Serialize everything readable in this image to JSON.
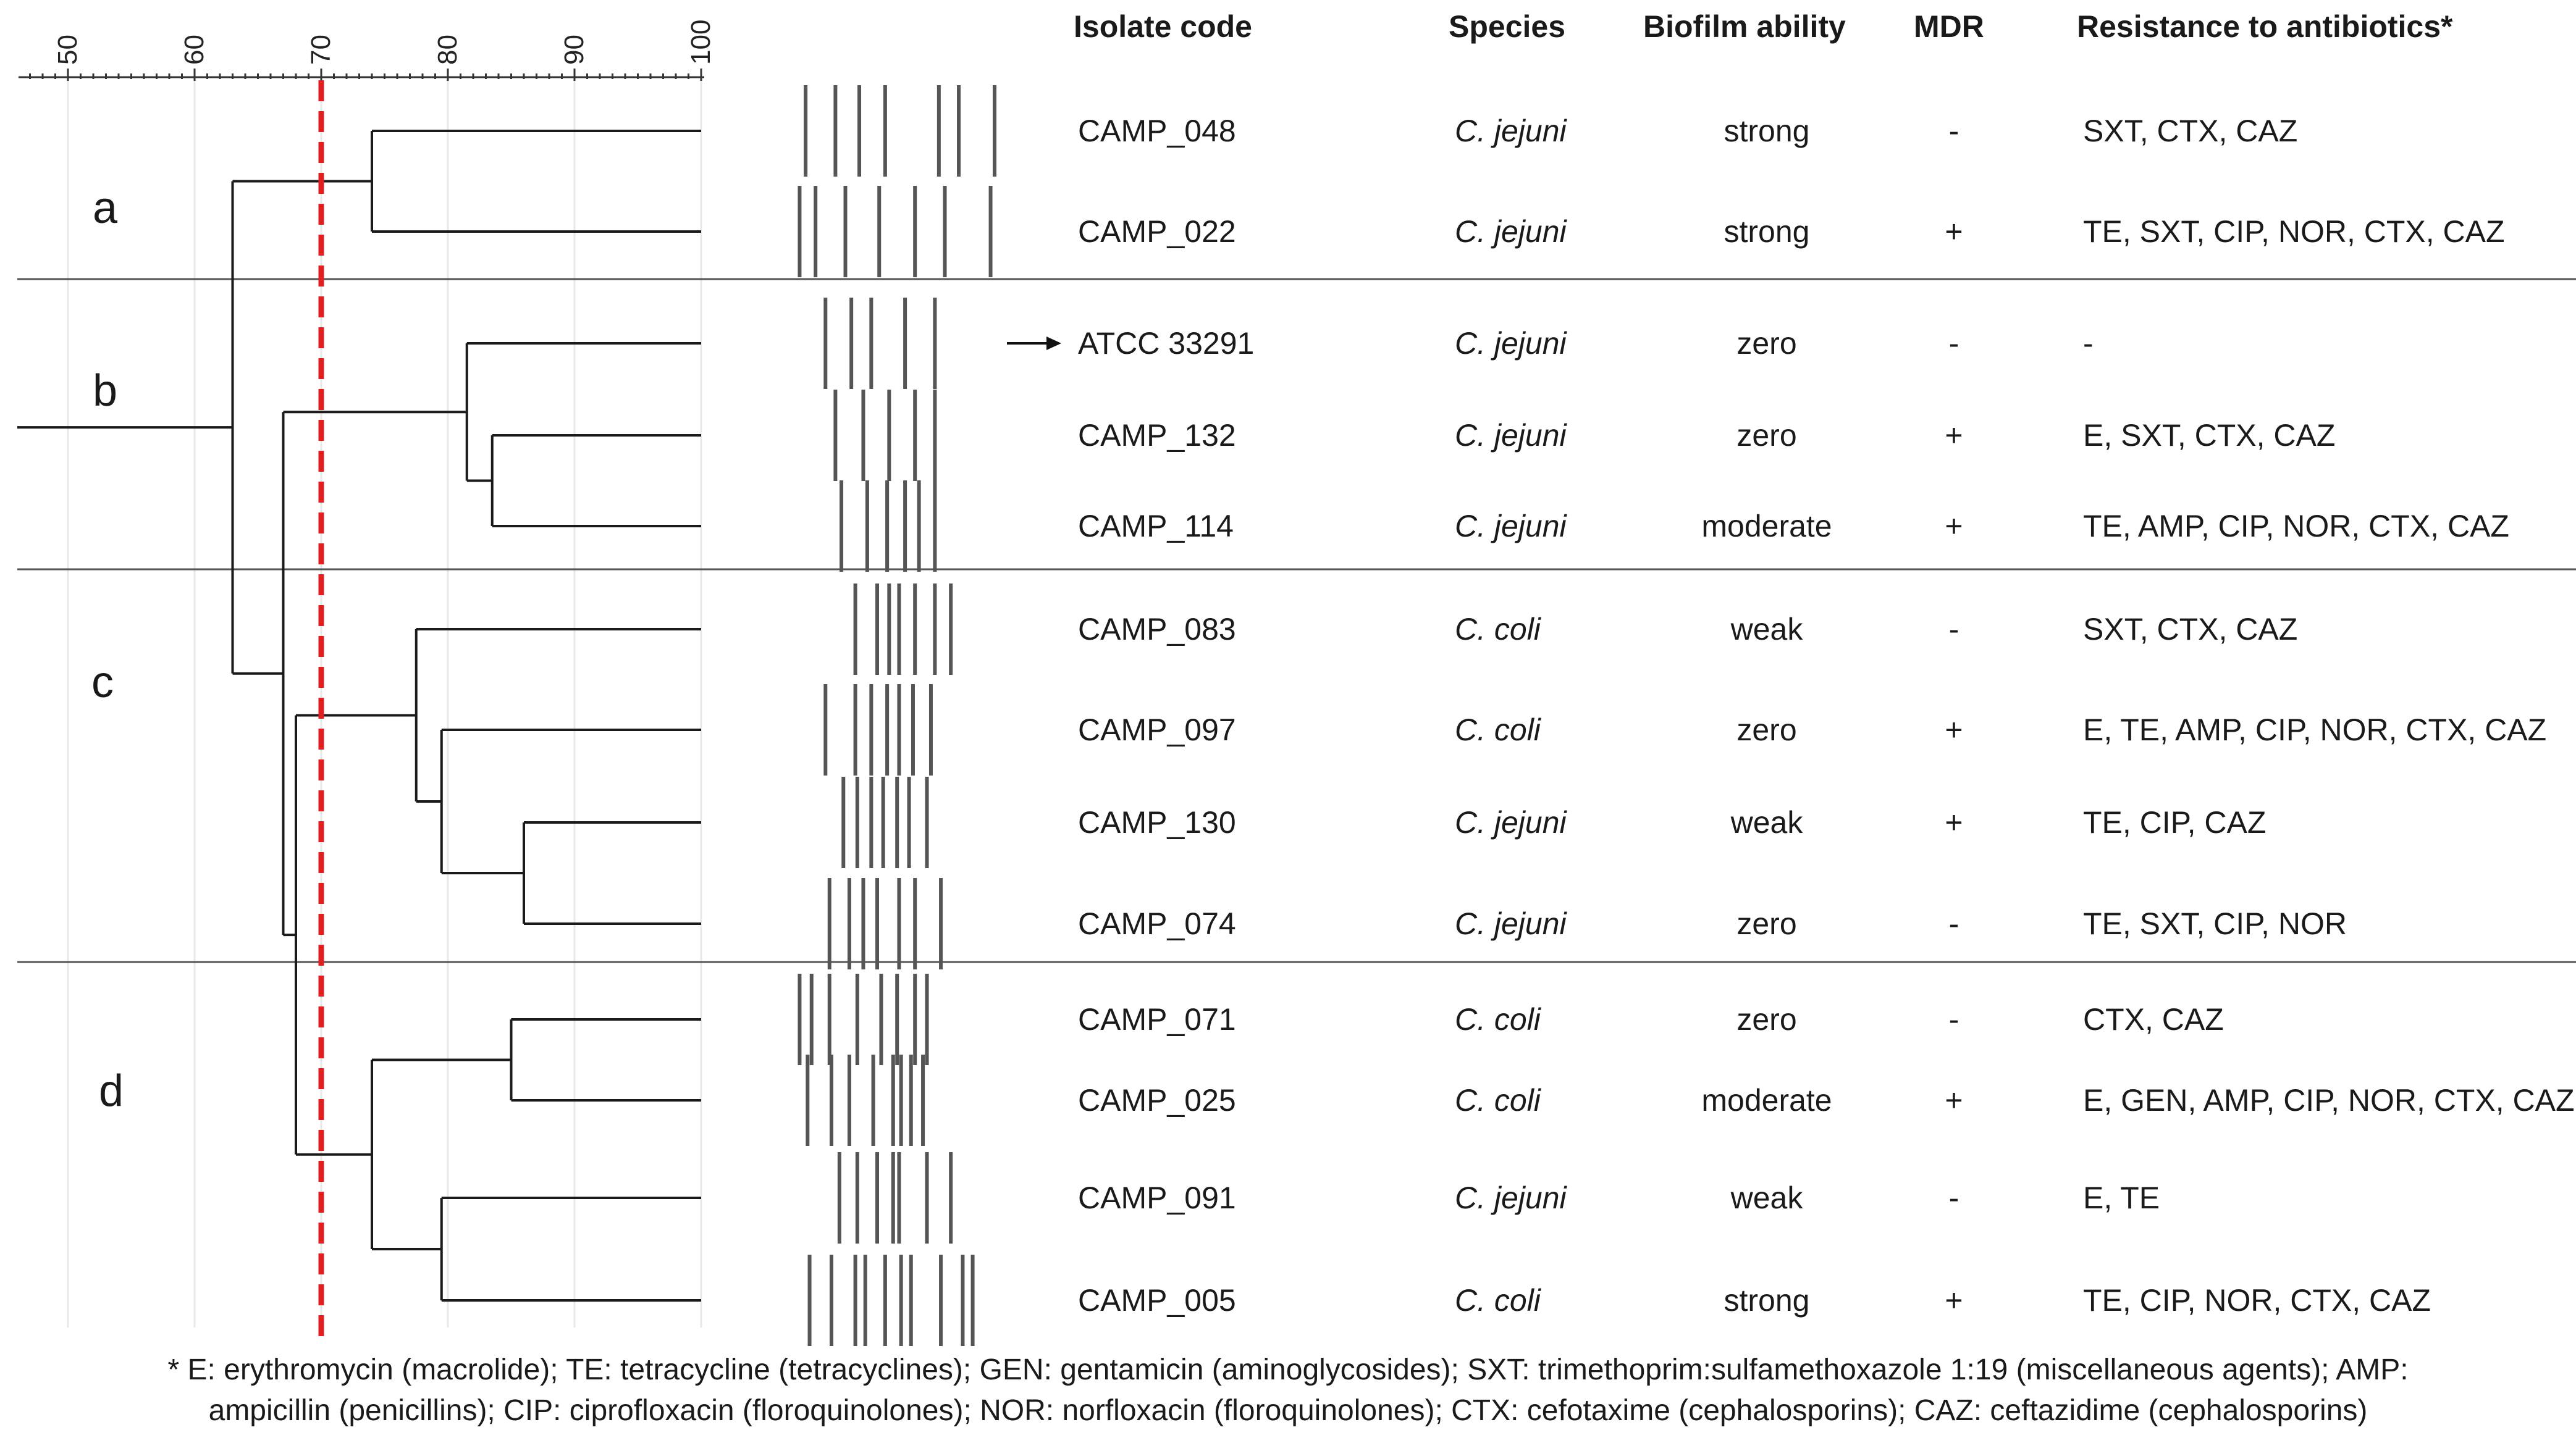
{
  "scale": {
    "ticks": [
      "50",
      "60",
      "70",
      "80",
      "90",
      "100"
    ],
    "cutoff": 70
  },
  "headers": {
    "isolate": "Isolate code",
    "species": "Species",
    "biofilm": "Biofilm ability",
    "mdr": "MDR",
    "resistance": "Resistance to antibiotics*"
  },
  "clusters": [
    "a",
    "b",
    "c",
    "d"
  ],
  "rows": [
    {
      "isolate": "CAMP_048",
      "species": "C. jejuni",
      "biofilm": "strong",
      "mdr": "-",
      "resistance": "SXT, CTX, CAZ"
    },
    {
      "isolate": "CAMP_022",
      "species": "C. jejuni",
      "biofilm": "strong",
      "mdr": "+",
      "resistance": "TE, SXT, CIP, NOR, CTX, CAZ"
    },
    {
      "isolate": "ATCC 33291",
      "species": "C. jejuni",
      "biofilm": "zero",
      "mdr": "-",
      "resistance": "-",
      "reference": true
    },
    {
      "isolate": "CAMP_132",
      "species": "C. jejuni",
      "biofilm": "zero",
      "mdr": "+",
      "resistance": "E, SXT, CTX, CAZ"
    },
    {
      "isolate": "CAMP_114",
      "species": "C. jejuni",
      "biofilm": "moderate",
      "mdr": "+",
      "resistance": "TE, AMP, CIP, NOR, CTX, CAZ"
    },
    {
      "isolate": "CAMP_083",
      "species": "C. coli",
      "biofilm": "weak",
      "mdr": "-",
      "resistance": "SXT, CTX, CAZ"
    },
    {
      "isolate": "CAMP_097",
      "species": "C. coli",
      "biofilm": "zero",
      "mdr": "+",
      "resistance": "E, TE, AMP, CIP, NOR, CTX, CAZ"
    },
    {
      "isolate": "CAMP_130",
      "species": "C. jejuni",
      "biofilm": "weak",
      "mdr": "+",
      "resistance": "TE, CIP, CAZ"
    },
    {
      "isolate": "CAMP_074",
      "species": "C. jejuni",
      "biofilm": "zero",
      "mdr": "-",
      "resistance": "TE, SXT, CIP, NOR"
    },
    {
      "isolate": "CAMP_071",
      "species": "C. coli",
      "biofilm": "zero",
      "mdr": "-",
      "resistance": "CTX, CAZ"
    },
    {
      "isolate": "CAMP_025",
      "species": "C. coli",
      "biofilm": "moderate",
      "mdr": "+",
      "resistance": "E, GEN, AMP, CIP, NOR, CTX, CAZ"
    },
    {
      "isolate": "CAMP_091",
      "species": "C. jejuni",
      "biofilm": "weak",
      "mdr": "-",
      "resistance": "E, TE"
    },
    {
      "isolate": "CAMP_005",
      "species": "C. coli",
      "biofilm": "strong",
      "mdr": "+",
      "resistance": "TE, CIP, NOR, CTX, CAZ"
    }
  ],
  "dendrogram": {
    "nodes": [
      {
        "children": [
          0,
          1
        ],
        "similarity": 74
      },
      {
        "children": [
          3,
          4
        ],
        "similarity": 83.5
      },
      {
        "children": [
          2,
          "n1"
        ],
        "similarity": 81.5
      },
      {
        "children": [
          7,
          8
        ],
        "similarity": 86
      },
      {
        "children": [
          6,
          "n3"
        ],
        "similarity": 79.5
      },
      {
        "children": [
          5,
          "n4"
        ],
        "similarity": 77.5
      },
      {
        "children": [
          9,
          10
        ],
        "similarity": 85
      },
      {
        "children": [
          11,
          12
        ],
        "similarity": 79.5
      },
      {
        "children": [
          "n6",
          "n7"
        ],
        "similarity": 74
      },
      {
        "children": [
          "n5",
          "n8"
        ],
        "similarity": 68
      },
      {
        "children": [
          "n2",
          "n9"
        ],
        "similarity": 67
      },
      {
        "children": [
          "n0",
          "n10"
        ],
        "similarity": 63
      },
      {
        "children": [
          "n11"
        ],
        "similarity": 46
      }
    ]
  },
  "bands": [
    [
      0.05,
      0.2,
      0.32,
      0.45,
      0.72,
      0.82,
      1.0
    ],
    [
      0.02,
      0.1,
      0.25,
      0.42,
      0.6,
      0.75,
      0.98
    ],
    [
      0.15,
      0.28,
      0.38,
      0.55,
      0.7
    ],
    [
      0.2,
      0.34,
      0.47,
      0.6,
      0.7
    ],
    [
      0.23,
      0.36,
      0.46,
      0.55,
      0.62,
      0.7
    ],
    [
      0.3,
      0.41,
      0.47,
      0.52,
      0.6,
      0.7,
      0.78
    ],
    [
      0.15,
      0.3,
      0.38,
      0.46,
      0.52,
      0.59,
      0.68
    ],
    [
      0.24,
      0.31,
      0.38,
      0.44,
      0.51,
      0.57,
      0.66
    ],
    [
      0.17,
      0.27,
      0.34,
      0.41,
      0.52,
      0.6,
      0.73
    ],
    [
      0.02,
      0.08,
      0.17,
      0.31,
      0.43,
      0.51,
      0.6,
      0.66
    ],
    [
      0.06,
      0.18,
      0.27,
      0.39,
      0.49,
      0.53,
      0.58,
      0.64
    ],
    [
      0.22,
      0.31,
      0.41,
      0.49,
      0.52,
      0.66,
      0.78
    ],
    [
      0.07,
      0.18,
      0.3,
      0.35,
      0.45,
      0.53,
      0.58,
      0.73,
      0.84,
      0.89
    ]
  ],
  "footnote": [
    "* E: erythromycin (macrolide); TE: tetracycline (tetracyclines); GEN: gentamicin (aminoglycosides); SXT: trimethoprim:sulfamethoxazole 1:19 (miscellaneous agents); AMP:",
    "ampicillin (penicillins); CIP: ciprofloxacin (floroquinolones); NOR: norfloxacin (floroquinolones); CTX: cefotaxime (cephalosporins); CAZ: ceftazidime (cephalosporins)"
  ]
}
